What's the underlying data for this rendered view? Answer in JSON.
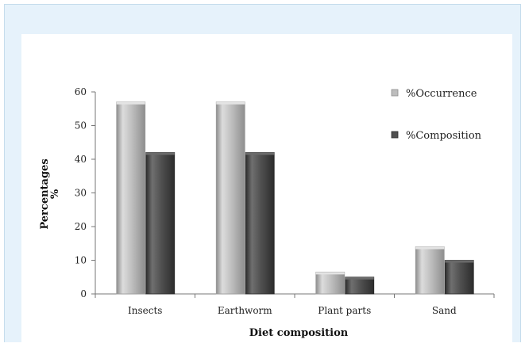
{
  "chart_data": {
    "type": "bar",
    "title": "",
    "categories": [
      "Insects",
      "Earthworm",
      "Plant parts",
      "Sand"
    ],
    "series": [
      {
        "name": "%Occurrence",
        "values": [
          57,
          57,
          6.5,
          14
        ]
      },
      {
        "name": "%Composition",
        "values": [
          42,
          42,
          5,
          10
        ]
      }
    ],
    "xlabel": "Diet composition",
    "ylabel_line1": "Percentages",
    "ylabel_line2": "%",
    "ylim": [
      0,
      60
    ],
    "yticks": [
      0,
      10,
      20,
      30,
      40,
      50,
      60
    ],
    "grid": false,
    "legend": "top-right",
    "colors": {
      "series0": "#bdbdbd",
      "series0_light": "#dcdcdc",
      "series0_dark": "#8e8e8e",
      "series1": "#4f4f4f",
      "series1_light": "#6f6f6f",
      "series1_dark": "#2c2c2c",
      "frame_bg": "#e6f2fb"
    }
  }
}
